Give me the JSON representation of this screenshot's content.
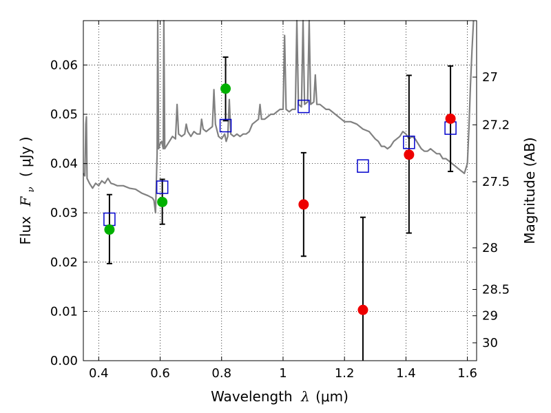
{
  "chart_data": {
    "type": "scatter",
    "title": "",
    "xlabel": {
      "text": "Wavelength",
      "symbol": "λ",
      "unit": "(μm)"
    },
    "ylabel": {
      "text": "Flux",
      "symbol": "F",
      "subscript": "ν",
      "unit": "( μJy )"
    },
    "ylabel_right": "Magnitude (AB)",
    "xlim": [
      0.35,
      1.63
    ],
    "ylim": [
      0.0,
      0.069
    ],
    "x_ticks": [
      0.4,
      0.6,
      0.8,
      1.0,
      1.2,
      1.4,
      1.6
    ],
    "x_tick_labels": [
      "0.4",
      "0.6",
      "0.8",
      "1",
      "1.2",
      "1.4",
      "1.6"
    ],
    "y_ticks": [
      0.0,
      0.01,
      0.02,
      0.03,
      0.04,
      0.05,
      0.06
    ],
    "y_tick_labels": [
      "0.00",
      "0.01",
      "0.02",
      "0.03",
      "0.04",
      "0.05",
      "0.06"
    ],
    "right_ticks": [
      {
        "mag": 27,
        "label": "27"
      },
      {
        "mag": 27.2,
        "label": "27.2"
      },
      {
        "mag": 27.5,
        "label": "27.5"
      },
      {
        "mag": 28,
        "label": "28"
      },
      {
        "mag": 28.5,
        "label": "28.5"
      },
      {
        "mag": 29,
        "label": "29"
      },
      {
        "mag": 30,
        "label": "30"
      }
    ],
    "grid": true,
    "colors": {
      "template": "#808080",
      "model_marker": "#0000cc",
      "detected": "#00b000",
      "undetected": "#ee0000",
      "errorbar": "#000000"
    },
    "series": [
      {
        "kind": "line",
        "points": [
          [
            0.35,
            0.038
          ],
          [
            0.355,
            0.0375
          ],
          [
            0.358,
            0.048
          ],
          [
            0.36,
            0.0495
          ],
          [
            0.362,
            0.037
          ],
          [
            0.37,
            0.036
          ],
          [
            0.38,
            0.035
          ],
          [
            0.39,
            0.036
          ],
          [
            0.4,
            0.0355
          ],
          [
            0.41,
            0.0365
          ],
          [
            0.42,
            0.036
          ],
          [
            0.43,
            0.037
          ],
          [
            0.44,
            0.036
          ],
          [
            0.45,
            0.0358
          ],
          [
            0.46,
            0.0355
          ],
          [
            0.48,
            0.0355
          ],
          [
            0.5,
            0.035
          ],
          [
            0.52,
            0.0348
          ],
          [
            0.54,
            0.034
          ],
          [
            0.56,
            0.0335
          ],
          [
            0.575,
            0.033
          ],
          [
            0.58,
            0.0325
          ],
          [
            0.585,
            0.03
          ],
          [
            0.59,
            0.042
          ],
          [
            0.592,
            0.069
          ],
          [
            0.595,
            0.043
          ],
          [
            0.6,
            0.044
          ],
          [
            0.605,
            0.0445
          ],
          [
            0.61,
            0.043
          ],
          [
            0.612,
            0.069
          ],
          [
            0.615,
            0.043
          ],
          [
            0.62,
            0.0435
          ],
          [
            0.63,
            0.0445
          ],
          [
            0.64,
            0.0455
          ],
          [
            0.65,
            0.045
          ],
          [
            0.655,
            0.052
          ],
          [
            0.66,
            0.046
          ],
          [
            0.67,
            0.0455
          ],
          [
            0.68,
            0.046
          ],
          [
            0.685,
            0.048
          ],
          [
            0.69,
            0.0465
          ],
          [
            0.7,
            0.0455
          ],
          [
            0.71,
            0.0465
          ],
          [
            0.72,
            0.046
          ],
          [
            0.73,
            0.046
          ],
          [
            0.735,
            0.049
          ],
          [
            0.74,
            0.047
          ],
          [
            0.75,
            0.0465
          ],
          [
            0.76,
            0.047
          ],
          [
            0.77,
            0.0475
          ],
          [
            0.775,
            0.055
          ],
          [
            0.78,
            0.048
          ],
          [
            0.79,
            0.0455
          ],
          [
            0.8,
            0.045
          ],
          [
            0.81,
            0.046
          ],
          [
            0.815,
            0.0445
          ],
          [
            0.82,
            0.0455
          ],
          [
            0.825,
            0.053
          ],
          [
            0.83,
            0.046
          ],
          [
            0.84,
            0.0455
          ],
          [
            0.85,
            0.046
          ],
          [
            0.86,
            0.0455
          ],
          [
            0.87,
            0.046
          ],
          [
            0.88,
            0.046
          ],
          [
            0.89,
            0.0465
          ],
          [
            0.9,
            0.048
          ],
          [
            0.91,
            0.0485
          ],
          [
            0.92,
            0.049
          ],
          [
            0.925,
            0.052
          ],
          [
            0.93,
            0.049
          ],
          [
            0.94,
            0.049
          ],
          [
            0.95,
            0.0495
          ],
          [
            0.96,
            0.05
          ],
          [
            0.97,
            0.05
          ],
          [
            0.98,
            0.0505
          ],
          [
            0.99,
            0.051
          ],
          [
            1.0,
            0.051
          ],
          [
            1.005,
            0.066
          ],
          [
            1.01,
            0.051
          ],
          [
            1.02,
            0.0505
          ],
          [
            1.03,
            0.051
          ],
          [
            1.04,
            0.051
          ],
          [
            1.045,
            0.069
          ],
          [
            1.05,
            0.052
          ],
          [
            1.06,
            0.0515
          ],
          [
            1.065,
            0.069
          ],
          [
            1.07,
            0.052
          ],
          [
            1.08,
            0.0525
          ],
          [
            1.085,
            0.069
          ],
          [
            1.09,
            0.052
          ],
          [
            1.1,
            0.0525
          ],
          [
            1.105,
            0.058
          ],
          [
            1.11,
            0.052
          ],
          [
            1.12,
            0.052
          ],
          [
            1.13,
            0.0515
          ],
          [
            1.14,
            0.051
          ],
          [
            1.15,
            0.051
          ],
          [
            1.16,
            0.0505
          ],
          [
            1.17,
            0.05
          ],
          [
            1.18,
            0.0495
          ],
          [
            1.19,
            0.049
          ],
          [
            1.2,
            0.0485
          ],
          [
            1.22,
            0.0485
          ],
          [
            1.24,
            0.048
          ],
          [
            1.26,
            0.047
          ],
          [
            1.28,
            0.0465
          ],
          [
            1.3,
            0.045
          ],
          [
            1.31,
            0.0445
          ],
          [
            1.32,
            0.0435
          ],
          [
            1.33,
            0.0435
          ],
          [
            1.34,
            0.043
          ],
          [
            1.35,
            0.0435
          ],
          [
            1.36,
            0.0445
          ],
          [
            1.37,
            0.045
          ],
          [
            1.38,
            0.0455
          ],
          [
            1.39,
            0.0465
          ],
          [
            1.4,
            0.046
          ],
          [
            1.41,
            0.045
          ],
          [
            1.42,
            0.0455
          ],
          [
            1.43,
            0.045
          ],
          [
            1.44,
            0.044
          ],
          [
            1.45,
            0.043
          ],
          [
            1.46,
            0.0425
          ],
          [
            1.47,
            0.0425
          ],
          [
            1.48,
            0.043
          ],
          [
            1.49,
            0.0425
          ],
          [
            1.5,
            0.042
          ],
          [
            1.51,
            0.042
          ],
          [
            1.52,
            0.041
          ],
          [
            1.53,
            0.041
          ],
          [
            1.54,
            0.0405
          ],
          [
            1.55,
            0.04
          ],
          [
            1.56,
            0.0395
          ],
          [
            1.57,
            0.039
          ],
          [
            1.58,
            0.0385
          ],
          [
            1.59,
            0.038
          ],
          [
            1.6,
            0.04
          ],
          [
            1.605,
            0.047
          ],
          [
            1.61,
            0.056
          ],
          [
            1.615,
            0.063
          ],
          [
            1.62,
            0.069
          ]
        ]
      },
      {
        "kind": "open-squares",
        "points": [
          [
            0.435,
            0.0287
          ],
          [
            0.607,
            0.0352
          ],
          [
            0.813,
            0.0477
          ],
          [
            1.067,
            0.0516
          ],
          [
            1.26,
            0.0395
          ],
          [
            1.41,
            0.0443
          ],
          [
            1.545,
            0.0472
          ]
        ]
      },
      {
        "kind": "filled-circles",
        "color_key": "detected",
        "points": [
          {
            "x": 0.435,
            "y": 0.0266,
            "err_low": 0.0197,
            "err_high": 0.0337
          },
          {
            "x": 0.607,
            "y": 0.0322,
            "err_low": 0.0277,
            "err_high": 0.0368
          },
          {
            "x": 0.813,
            "y": 0.0552,
            "err_low": 0.0487,
            "err_high": 0.0616
          }
        ]
      },
      {
        "kind": "filled-circles",
        "color_key": "undetected",
        "points": [
          {
            "x": 1.067,
            "y": 0.0317,
            "err_low": 0.0212,
            "err_high": 0.0422
          },
          {
            "x": 1.26,
            "y": 0.0103,
            "err_low": 0.0,
            "err_high": 0.0291
          },
          {
            "x": 1.41,
            "y": 0.0418,
            "err_low": 0.0259,
            "err_high": 0.0579
          },
          {
            "x": 1.545,
            "y": 0.0491,
            "err_low": 0.0384,
            "err_high": 0.0598
          }
        ]
      }
    ]
  }
}
